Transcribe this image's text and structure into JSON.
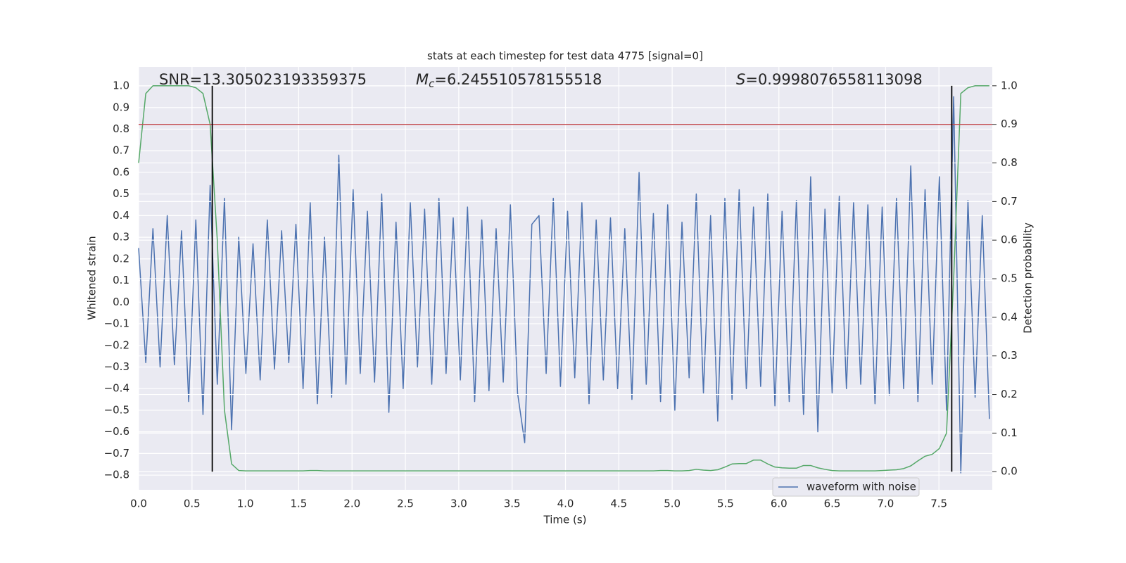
{
  "chart_data": {
    "type": "line",
    "title": "stats at each timestep for test data 4775 [signal=0]",
    "x_label": "Time (s)",
    "y_label": "Whitened strain",
    "y2_label": "Detection probability",
    "annotations": {
      "snr": "SNR=13.305023193359375",
      "mc": {
        "symbol": "M",
        "subscript": "c",
        "text": "=6.245510578155518"
      },
      "s": {
        "symbol": "S",
        "text": "=0.9998076558113098"
      }
    },
    "xlim": [
      0,
      8
    ],
    "ylim": [
      -0.868,
      1.088
    ],
    "y2lim": [
      -0.047,
      1.049
    ],
    "xticks": [
      {
        "value": 0,
        "label": "0.0"
      },
      0.5,
      {
        "value": 1,
        "label": "1.0"
      },
      1.5,
      {
        "value": 2,
        "label": "2.0"
      },
      2.5,
      {
        "value": 3,
        "label": "3.0"
      },
      3.5,
      {
        "value": 4,
        "label": "4.0"
      },
      4.5,
      {
        "value": 5,
        "label": "5.0"
      },
      5.5,
      {
        "value": 6,
        "label": "6.0"
      },
      6.5,
      {
        "value": 7,
        "label": "7.0"
      },
      7.5
    ],
    "yticks": [
      {
        "value": -0.8,
        "label": "−0.8"
      },
      {
        "value": -0.7,
        "label": "−0.7"
      },
      {
        "value": -0.6,
        "label": "−0.6"
      },
      {
        "value": -0.5,
        "label": "−0.5"
      },
      {
        "value": -0.4,
        "label": "−0.4"
      },
      {
        "value": -0.3,
        "label": "−0.3"
      },
      {
        "value": -0.2,
        "label": "−0.2"
      },
      {
        "value": -0.1,
        "label": "−0.1"
      },
      {
        "value": 0,
        "label": "0.0"
      },
      0.1,
      0.2,
      0.3,
      0.4,
      0.5,
      0.6,
      0.7,
      0.8,
      0.9,
      {
        "value": 1,
        "label": "1.0"
      }
    ],
    "y2ticks": [
      {
        "value": 0,
        "label": "0.0"
      },
      0.1,
      0.2,
      0.3,
      0.4,
      0.5,
      0.6,
      0.7,
      0.8,
      0.9,
      {
        "value": 1,
        "label": "1.0"
      }
    ],
    "grid": true,
    "legend": "lower right",
    "threshold": {
      "value": 0.9,
      "axis": "y2",
      "color": "#c44e52"
    },
    "vlines": {
      "x": [
        0.69,
        7.62
      ],
      "color": "#000000"
    },
    "x": [
      0,
      0.067,
      0.134,
      0.201,
      0.268,
      0.335,
      0.402,
      0.469,
      0.536,
      0.603,
      0.67,
      0.737,
      0.804,
      0.871,
      0.938,
      1.005,
      1.072,
      1.139,
      1.206,
      1.273,
      1.34,
      1.407,
      1.474,
      1.541,
      1.608,
      1.675,
      1.742,
      1.809,
      1.876,
      1.943,
      2.01,
      2.077,
      2.144,
      2.211,
      2.278,
      2.345,
      2.412,
      2.479,
      2.546,
      2.613,
      2.68,
      2.747,
      2.814,
      2.881,
      2.948,
      3.015,
      3.082,
      3.149,
      3.216,
      3.283,
      3.35,
      3.417,
      3.484,
      3.551,
      3.618,
      3.685,
      3.752,
      3.819,
      3.886,
      3.953,
      4.02,
      4.087,
      4.154,
      4.221,
      4.288,
      4.355,
      4.422,
      4.489,
      4.556,
      4.623,
      4.69,
      4.757,
      4.824,
      4.891,
      4.958,
      5.025,
      5.092,
      5.159,
      5.226,
      5.293,
      5.36,
      5.427,
      5.494,
      5.561,
      5.628,
      5.695,
      5.762,
      5.829,
      5.896,
      5.963,
      6.03,
      6.097,
      6.164,
      6.231,
      6.298,
      6.365,
      6.432,
      6.499,
      6.566,
      6.633,
      6.7,
      6.767,
      6.834,
      6.901,
      6.968,
      7.035,
      7.102,
      7.169,
      7.236,
      7.303,
      7.37,
      7.437,
      7.504,
      7.571,
      7.638,
      7.705,
      7.772,
      7.839,
      7.906,
      7.973
    ],
    "series": [
      {
        "name": "waveform with noise",
        "color": "#4c72b0",
        "values": [
          0.25,
          -0.28,
          0.34,
          -0.3,
          0.4,
          -0.29,
          0.33,
          -0.46,
          0.38,
          -0.52,
          0.54,
          -0.38,
          0.48,
          -0.59,
          0.3,
          -0.33,
          0.27,
          -0.36,
          0.38,
          -0.31,
          0.33,
          -0.28,
          0.36,
          -0.4,
          0.46,
          -0.47,
          0.3,
          -0.44,
          0.68,
          -0.38,
          0.52,
          -0.33,
          0.42,
          -0.37,
          0.5,
          -0.51,
          0.37,
          -0.4,
          0.46,
          -0.3,
          0.43,
          -0.38,
          0.48,
          -0.33,
          0.39,
          -0.36,
          0.44,
          -0.46,
          0.38,
          -0.41,
          0.34,
          -0.37,
          0.45,
          -0.42,
          -0.65,
          0.36,
          0.4,
          -0.33,
          0.48,
          -0.39,
          0.42,
          -0.35,
          0.46,
          -0.47,
          0.38,
          -0.36,
          0.39,
          -0.4,
          0.34,
          -0.45,
          0.6,
          -0.38,
          0.41,
          -0.46,
          0.45,
          -0.5,
          0.37,
          -0.35,
          0.5,
          -0.42,
          0.4,
          -0.55,
          0.48,
          -0.45,
          0.52,
          -0.4,
          0.44,
          -0.39,
          0.5,
          -0.48,
          0.42,
          -0.46,
          0.47,
          -0.52,
          0.58,
          -0.6,
          0.43,
          -0.42,
          0.49,
          -0.4,
          0.46,
          -0.38,
          0.45,
          -0.47,
          0.44,
          -0.43,
          0.48,
          -0.4,
          0.63,
          -0.46,
          0.52,
          -0.38,
          0.58,
          -0.5,
          0.95,
          -0.79,
          0.47,
          -0.44,
          0.4,
          -0.54
        ]
      },
      {
        "color": "#55a868",
        "axis": "y2",
        "values": [
          0.8,
          0.98,
          1.0,
          1.0,
          1.0,
          1.0,
          1.0,
          1.0,
          0.995,
          0.98,
          0.9,
          0.6,
          0.16,
          0.02,
          0.003,
          0.002,
          0.002,
          0.002,
          0.002,
          0.002,
          0.002,
          0.002,
          0.002,
          0.002,
          0.003,
          0.003,
          0.002,
          0.002,
          0.002,
          0.002,
          0.002,
          0.002,
          0.002,
          0.002,
          0.002,
          0.002,
          0.002,
          0.002,
          0.002,
          0.002,
          0.002,
          0.002,
          0.002,
          0.002,
          0.002,
          0.002,
          0.002,
          0.002,
          0.002,
          0.002,
          0.002,
          0.002,
          0.002,
          0.002,
          0.002,
          0.002,
          0.002,
          0.002,
          0.002,
          0.002,
          0.002,
          0.002,
          0.002,
          0.002,
          0.002,
          0.002,
          0.002,
          0.002,
          0.002,
          0.002,
          0.002,
          0.002,
          0.002,
          0.003,
          0.003,
          0.002,
          0.002,
          0.003,
          0.006,
          0.004,
          0.003,
          0.005,
          0.012,
          0.02,
          0.021,
          0.021,
          0.03,
          0.03,
          0.02,
          0.012,
          0.01,
          0.009,
          0.009,
          0.016,
          0.016,
          0.01,
          0.006,
          0.003,
          0.002,
          0.002,
          0.002,
          0.002,
          0.002,
          0.002,
          0.003,
          0.004,
          0.005,
          0.008,
          0.015,
          0.028,
          0.04,
          0.045,
          0.06,
          0.1,
          0.5,
          0.98,
          0.995,
          1.0,
          1.0,
          1.0
        ]
      }
    ]
  }
}
